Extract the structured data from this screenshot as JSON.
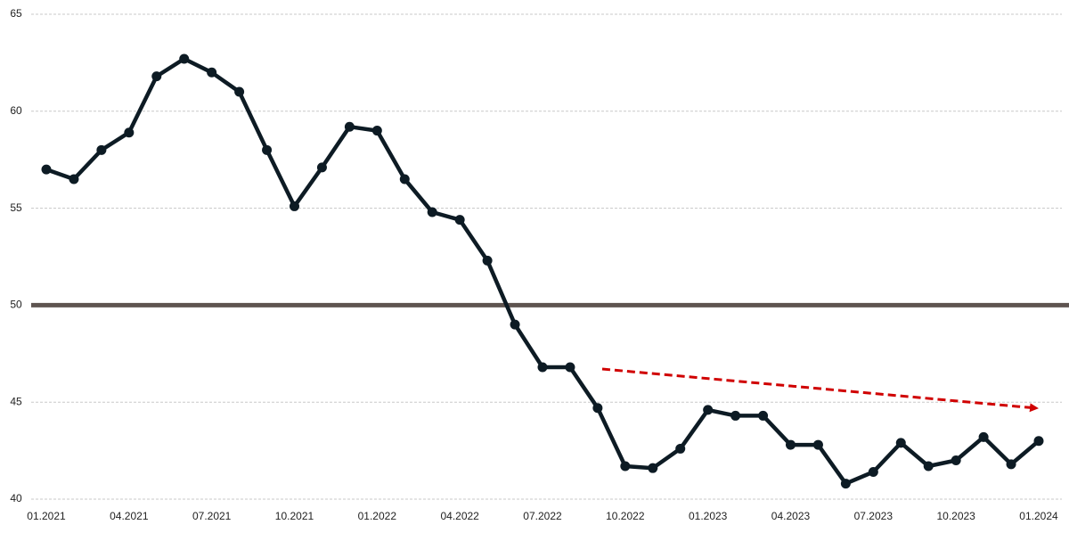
{
  "chart_data": {
    "type": "line",
    "categories": [
      "01.2021",
      null,
      null,
      "04.2021",
      null,
      null,
      "07.2021",
      null,
      null,
      "10.2021",
      null,
      null,
      "01.2022",
      null,
      null,
      "04.2022",
      null,
      null,
      "07.2022",
      null,
      null,
      "10.2022",
      null,
      null,
      "01.2023",
      null,
      null,
      "04.2023",
      null,
      null,
      "07.2023",
      null,
      null,
      "10.2023",
      null,
      null,
      "01.2024"
    ],
    "values": [
      57.0,
      56.5,
      58.0,
      58.9,
      61.8,
      62.7,
      62.0,
      61.0,
      58.0,
      55.1,
      57.1,
      59.2,
      59.0,
      56.5,
      54.8,
      54.4,
      52.3,
      49.0,
      46.8,
      46.8,
      44.7,
      41.7,
      41.6,
      42.6,
      44.6,
      44.3,
      44.3,
      42.8,
      42.8,
      40.8,
      41.4,
      42.9,
      41.7,
      42.0,
      43.2,
      41.8,
      43.0
    ],
    "color": "#0d1b24",
    "ylim": [
      40,
      65
    ],
    "yticks": [
      40,
      45,
      50,
      55,
      60,
      65
    ],
    "grid": true,
    "reference_line": {
      "value": 50,
      "color": "#5e5450"
    }
  }
}
